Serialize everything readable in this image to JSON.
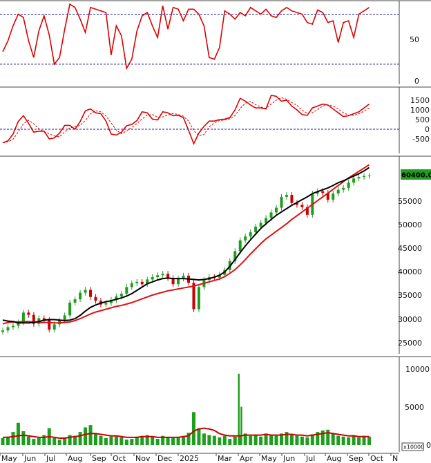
{
  "colors": {
    "rsi_line": "#dd0000",
    "macd_line": "#dd0000",
    "signal_line": "#dd0000",
    "ref_line": "#1a1a99",
    "up_candle": "#1e9e1e",
    "down_candle": "#cc0000",
    "ma_fast": "#000000",
    "ma_slow": "#dd1111",
    "volume_bar": "#1e9e1e",
    "volume_ma": "#cc0000",
    "price_label_bg": "#1e9e1e",
    "frame": "#444444"
  },
  "chart_data": [
    {
      "type": "line",
      "name": "rsi",
      "x_range": [
        0,
        72
      ],
      "ylim": [
        0,
        100
      ],
      "y_ticks": [
        "50",
        "0"
      ],
      "y_tick_values": [
        50,
        0
      ],
      "ref_levels": [
        80,
        20
      ],
      "x": [
        0,
        1,
        2,
        3,
        4,
        5,
        6,
        7,
        8,
        9,
        10,
        11,
        12,
        13,
        14,
        15,
        16,
        17,
        18,
        19,
        20,
        21,
        22,
        23,
        24,
        25,
        26,
        27,
        28,
        29,
        30,
        31,
        32,
        33,
        34,
        35,
        36,
        37,
        38,
        39,
        40,
        41,
        42,
        43,
        44,
        45,
        46,
        47,
        48,
        49,
        50,
        51,
        52,
        53,
        54,
        55,
        56,
        57,
        58,
        59,
        60,
        61,
        62,
        63,
        64,
        65,
        66,
        67,
        68,
        69,
        70,
        71
      ],
      "y": [
        35,
        48,
        66,
        80,
        76,
        48,
        28,
        60,
        78,
        55,
        20,
        28,
        62,
        92,
        88,
        74,
        58,
        88,
        86,
        84,
        82,
        31,
        66,
        54,
        15,
        26,
        60,
        78,
        82,
        66,
        52,
        90,
        62,
        88,
        86,
        72,
        86,
        86,
        80,
        66,
        28,
        26,
        40,
        84,
        80,
        74,
        82,
        78,
        88,
        84,
        80,
        86,
        78,
        76,
        84,
        88,
        84,
        82,
        80,
        70,
        68,
        85,
        82,
        70,
        72,
        46,
        70,
        72,
        52,
        80,
        84,
        88
      ]
    },
    {
      "type": "line",
      "name": "macd",
      "x_range": [
        0,
        72
      ],
      "ylim": [
        -1100,
        2000
      ],
      "y_ticks": [
        "1500",
        "1000",
        "500",
        "0",
        "-500"
      ],
      "y_tick_values": [
        1500,
        1000,
        500,
        0,
        -500
      ],
      "ref_levels": [
        0
      ],
      "x": [
        0,
        1,
        2,
        3,
        4,
        5,
        6,
        7,
        8,
        9,
        10,
        11,
        12,
        13,
        14,
        15,
        16,
        17,
        18,
        19,
        20,
        21,
        22,
        23,
        24,
        25,
        26,
        27,
        28,
        29,
        30,
        31,
        32,
        33,
        34,
        35,
        36,
        37,
        38,
        39,
        40,
        41,
        42,
        43,
        44,
        45,
        46,
        47,
        48,
        49,
        50,
        51,
        52,
        53,
        54,
        55,
        56,
        57,
        58,
        59,
        60,
        61,
        62,
        63,
        64,
        65,
        66,
        67,
        68,
        69,
        70,
        71
      ],
      "y": [
        -700,
        -600,
        -250,
        400,
        700,
        300,
        -150,
        -100,
        -100,
        -500,
        -450,
        -200,
        200,
        200,
        0,
        400,
        950,
        1050,
        850,
        800,
        420,
        -250,
        -300,
        -150,
        180,
        250,
        450,
        900,
        850,
        520,
        480,
        900,
        850,
        700,
        720,
        600,
        -50,
        -750,
        -200,
        150,
        420,
        420,
        500,
        520,
        600,
        1000,
        1600,
        1450,
        1250,
        1100,
        1100,
        1050,
        1750,
        1700,
        1450,
        1500,
        1200,
        1000,
        750,
        720,
        1100,
        1200,
        1300,
        1250,
        1050,
        850,
        650,
        700,
        800,
        900,
        1100,
        1300
      ]
    },
    {
      "type": "candlestick",
      "name": "price",
      "x_range": [
        0,
        72
      ],
      "ylim": [
        22000,
        63500
      ],
      "y_ticks": [
        "55000",
        "50000",
        "45000",
        "40000",
        "35000",
        "30000",
        "25000"
      ],
      "y_tick_values": [
        55000,
        50000,
        45000,
        40000,
        35000,
        30000,
        25000
      ],
      "last_price_label": "60400.00",
      "last_price": 60400,
      "close": [
        27600,
        28300,
        28600,
        29300,
        31400,
        30900,
        29000,
        30200,
        29800,
        27800,
        28900,
        29700,
        30800,
        33500,
        34200,
        35600,
        36200,
        34700,
        33900,
        33100,
        33400,
        34100,
        34800,
        35400,
        36800,
        37600,
        37900,
        37400,
        38400,
        38900,
        39300,
        39600,
        38700,
        37400,
        38600,
        39200,
        37700,
        32100,
        36800,
        38300,
        38900,
        38800,
        39400,
        40400,
        42300,
        44400,
        46700,
        47500,
        48400,
        49600,
        50400,
        51400,
        52600,
        53600,
        55900,
        56300,
        54600,
        54200,
        53700,
        52100,
        56600,
        57100,
        56700,
        55300,
        56600,
        57400,
        57800,
        58900,
        59800,
        60100,
        60300,
        60400
      ],
      "ma_fast": [
        29800,
        29600,
        29500,
        29200,
        29200,
        29200,
        29300,
        29500,
        29800,
        29900,
        29900,
        29800,
        29700,
        29800,
        30100,
        30800,
        31700,
        32500,
        33000,
        33400,
        33700,
        33900,
        34200,
        34500,
        34900,
        35400,
        36100,
        36800,
        37500,
        37900,
        38300,
        38600,
        38700,
        38600,
        38600,
        38600,
        38500,
        38400,
        38300,
        38400,
        38600,
        38900,
        39300,
        40000,
        41200,
        42600,
        44100,
        45500,
        46800,
        48000,
        49200,
        50200,
        51100,
        52000,
        52700,
        53400,
        54100,
        54700,
        55300,
        55900,
        56600,
        57000,
        57400,
        57800,
        58300,
        58900,
        59300,
        59800,
        60300,
        60800,
        61400,
        62100
      ],
      "ma_slow": [
        29000,
        29300,
        29400,
        29400,
        29500,
        29500,
        29400,
        29300,
        29300,
        29300,
        29200,
        29200,
        29300,
        29400,
        29700,
        30100,
        30600,
        31100,
        31500,
        31800,
        32100,
        32400,
        32700,
        32900,
        33200,
        33500,
        33900,
        34300,
        34700,
        35100,
        35400,
        35700,
        36000,
        36200,
        36400,
        36600,
        36800,
        37000,
        37300,
        37600,
        37900,
        38200,
        38500,
        39000,
        39700,
        40500,
        41500,
        42600,
        43800,
        44900,
        46000,
        47000,
        47800,
        48600,
        49400,
        50200,
        51100,
        51900,
        52700,
        53500,
        54300,
        55100,
        55900,
        56700,
        57500,
        58300,
        59100,
        59900,
        60600,
        61300,
        62000,
        62700
      ],
      "month_labels": [
        "May",
        "Jun",
        "Jul",
        "Aug",
        "Sep",
        "Oct",
        "Nov",
        "Dec",
        "2025",
        "Mar",
        "Apr",
        "May",
        "Jun",
        "Jul",
        "Aug",
        "Sep",
        "Oct",
        "N"
      ]
    },
    {
      "type": "bar",
      "name": "volume",
      "x_range": [
        0,
        72
      ],
      "ylim": [
        0,
        10700
      ],
      "y_ticks": [
        "10000",
        "5000",
        "0"
      ],
      "y_tick_values": [
        10000,
        5000,
        0
      ],
      "unit": "x10000",
      "values": [
        900,
        1100,
        1700,
        2900,
        1800,
        1100,
        800,
        900,
        1300,
        2200,
        900,
        700,
        1000,
        1300,
        1200,
        1700,
        2300,
        2600,
        1500,
        1200,
        900,
        1100,
        1100,
        1000,
        700,
        800,
        1100,
        1200,
        1300,
        1100,
        800,
        1200,
        1000,
        900,
        1000,
        1200,
        1600,
        4300,
        2200,
        1500,
        1300,
        1200,
        1000,
        1200,
        800,
        1100,
        1300,
        1500,
        1200,
        1300,
        1100,
        1500,
        1300,
        1200,
        1500,
        1700,
        1400,
        1200,
        1100,
        1000,
        1400,
        1700,
        1900,
        2000,
        1500,
        1200,
        1100,
        1000,
        1300,
        1000,
        1200,
        1100
      ],
      "spikes": [
        {
          "x": 45.7,
          "value": 9300
        },
        {
          "x": 46.2,
          "value": 5000
        }
      ],
      "ma_values": [
        1000,
        1000,
        1100,
        1200,
        1300,
        1200,
        1100,
        1000,
        1000,
        1100,
        1000,
        900,
        900,
        1000,
        1100,
        1200,
        1400,
        1500,
        1500,
        1400,
        1300,
        1200,
        1200,
        1100,
        1000,
        1000,
        1000,
        1100,
        1100,
        1100,
        1000,
        1000,
        1000,
        1000,
        1000,
        1100,
        1200,
        1800,
        2100,
        2200,
        2100,
        1900,
        1500,
        1300,
        1200,
        1200,
        1200,
        1300,
        1300,
        1300,
        1300,
        1400,
        1300,
        1300,
        1300,
        1400,
        1400,
        1300,
        1300,
        1200,
        1300,
        1400,
        1500,
        1600,
        1500,
        1400,
        1300,
        1200,
        1200,
        1100,
        1100,
        1100
      ]
    }
  ]
}
